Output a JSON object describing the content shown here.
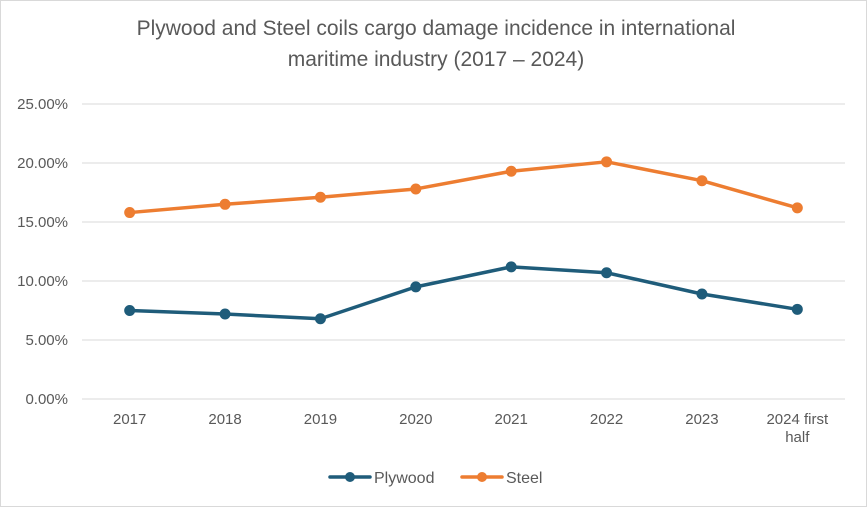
{
  "chart_data": {
    "type": "line",
    "title": "Plywood and Steel coils cargo damage incidence in international maritime industry (2017 – 2024)",
    "title_lines": [
      "Plywood and Steel coils cargo damage incidence in international",
      "maritime industry (2017 – 2024)"
    ],
    "categories": [
      "2017",
      "2018",
      "2019",
      "2020",
      "2021",
      "2022",
      "2023",
      "2024 first half"
    ],
    "category_lines": [
      [
        "2017"
      ],
      [
        "2018"
      ],
      [
        "2019"
      ],
      [
        "2020"
      ],
      [
        "2021"
      ],
      [
        "2022"
      ],
      [
        "2023"
      ],
      [
        "2024 first",
        "half"
      ]
    ],
    "series": [
      {
        "name": "Plywood",
        "color": "#1f5c7a",
        "values": [
          7.5,
          7.2,
          6.8,
          9.5,
          11.2,
          10.7,
          8.9,
          7.6
        ]
      },
      {
        "name": "Steel",
        "color": "#ed7d31",
        "values": [
          15.8,
          16.5,
          17.1,
          17.8,
          19.3,
          20.1,
          18.5,
          16.2
        ]
      }
    ],
    "ylim": [
      0,
      25
    ],
    "yticks": [
      0,
      5,
      10,
      15,
      20,
      25
    ],
    "ytick_labels": [
      "0.00%",
      "5.00%",
      "10.00%",
      "15.00%",
      "20.00%",
      "25.00%"
    ],
    "xlabel": "",
    "ylabel": "",
    "grid": true,
    "legend": "bottom-center",
    "colors": {
      "grid": "#d9d9d9",
      "text": "#595959"
    }
  }
}
